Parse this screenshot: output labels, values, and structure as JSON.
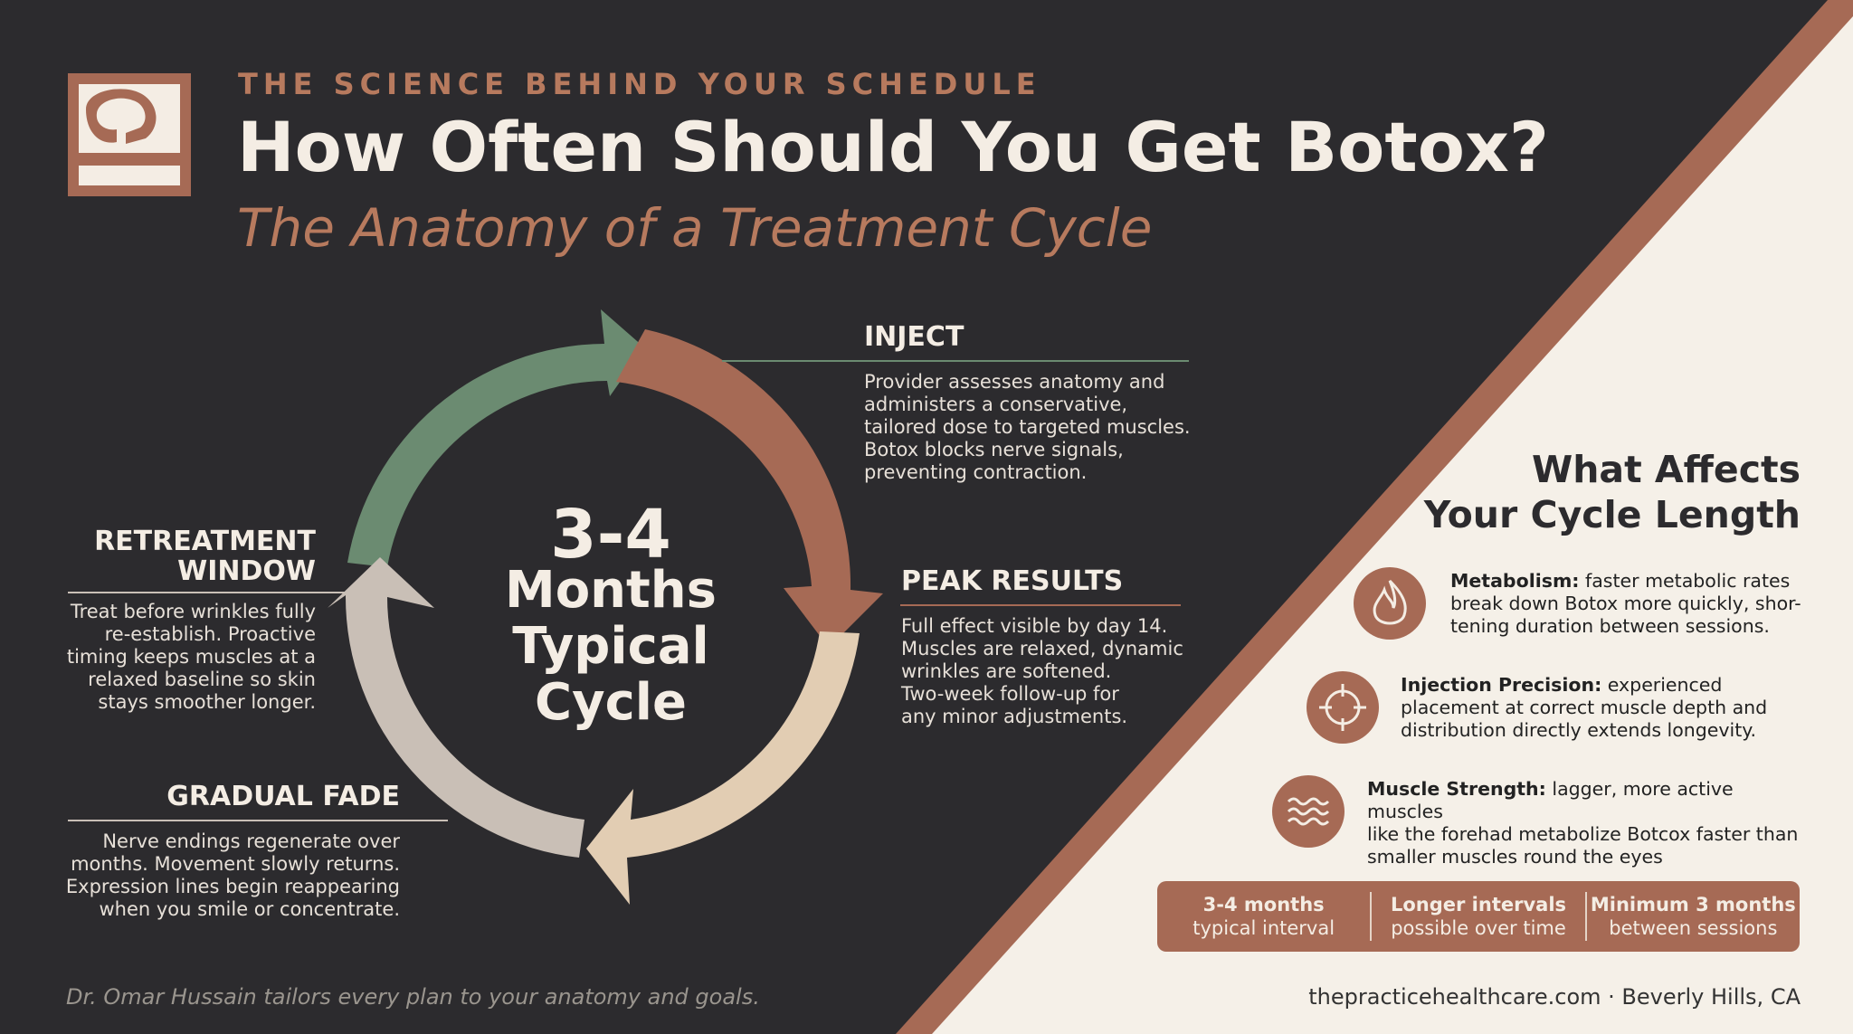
{
  "header": {
    "eyebrow": "THE SCIENCE BEHIND YOUR SCHEDULE",
    "title": "How Often Should You Get Botox?",
    "subtitle": "The Anatomy of a Treatment Cycle"
  },
  "cycle": {
    "center_number": "3-4",
    "center_lines": [
      "Months",
      "Typical",
      "Cycle"
    ],
    "stages": [
      {
        "title": "INJECT",
        "lines": [
          "Provider assesses anatomy and",
          "administers a conservative,",
          "tailored dose to targeted muscles.",
          "Botox blocks nerve signals,",
          "preventing contraction."
        ]
      },
      {
        "title": "PEAK RESULTS",
        "lines": [
          "Full effect visible by day 14.",
          "Muscles are relaxed, dynamic",
          "wrinkles are softened.",
          "Two-week follow-up for",
          "any minor adjustments."
        ]
      },
      {
        "title": "GRADUAL FADE",
        "lines": [
          "Nerve endings regenerate over",
          "months. Movement slowly returns.",
          "Expression lines begin reappearing",
          "when you smile or concentrate."
        ]
      },
      {
        "title_lines": [
          "RETREATMENT",
          "WINDOW"
        ],
        "lines": [
          "Treat before wrinkles fully",
          "re-establish. Proactive",
          "timing keeps muscles at a",
          "relaxed baseline so skin",
          "stays smoother longer."
        ]
      }
    ]
  },
  "factors": {
    "heading_lines": [
      "What Affects",
      "Your Cycle Length"
    ],
    "items": [
      {
        "icon": "flame-icon",
        "label": "Metabolism:",
        "lines": [
          " faster metabolic rates",
          "break down Botox more quickly, shor-",
          "tening duration between sessions."
        ]
      },
      {
        "icon": "crosshair-icon",
        "label": "Injection Precision:",
        "lines": [
          " experienced",
          "placement at correct muscle depth and",
          "distribution directly extends longevity."
        ]
      },
      {
        "icon": "waves-icon",
        "label": "Muscle Strength:",
        "lines": [
          " lagger, more active muscles",
          "like the forehad metabolize Botcox faster than",
          "smaller muscles round the eyeѕ"
        ]
      }
    ]
  },
  "stats": [
    {
      "value": "3-4 months",
      "label": "typical interval"
    },
    {
      "value": "Longer intervals",
      "label": "possible over time"
    },
    {
      "value": "Minimum 3 months",
      "label": "between sessions"
    }
  ],
  "footer": {
    "left": "Dr. Omar Hussain tailors every plan to your anatomy and goals.",
    "right": "thepracticehealthcare.com · Beverly Hills, CA"
  },
  "colors": {
    "background": "#2c2b2e",
    "accent": "#a66a55",
    "green": "#6b8b71",
    "beige": "#e2cdb3",
    "grey": "#c9bfb6",
    "panel": "#f5f0e8"
  }
}
